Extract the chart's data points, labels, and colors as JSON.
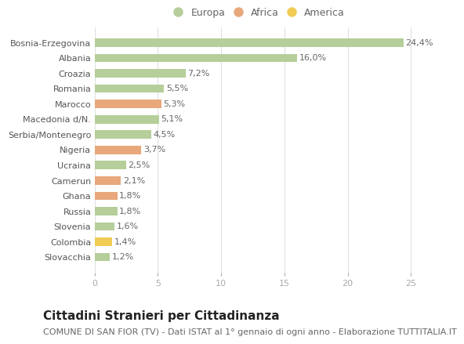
{
  "categories": [
    "Bosnia-Erzegovina",
    "Albania",
    "Croazia",
    "Romania",
    "Marocco",
    "Macedonia d/N.",
    "Serbia/Montenegro",
    "Nigeria",
    "Ucraina",
    "Camerun",
    "Ghana",
    "Russia",
    "Slovenia",
    "Colombia",
    "Slovacchia"
  ],
  "values": [
    24.4,
    16.0,
    7.2,
    5.5,
    5.3,
    5.1,
    4.5,
    3.7,
    2.5,
    2.1,
    1.8,
    1.8,
    1.6,
    1.4,
    1.2
  ],
  "labels": [
    "24,4%",
    "16,0%",
    "7,2%",
    "5,5%",
    "5,3%",
    "5,1%",
    "4,5%",
    "3,7%",
    "2,5%",
    "2,1%",
    "1,8%",
    "1,8%",
    "1,6%",
    "1,4%",
    "1,2%"
  ],
  "continents": [
    "Europa",
    "Europa",
    "Europa",
    "Europa",
    "Africa",
    "Europa",
    "Europa",
    "Africa",
    "Europa",
    "Africa",
    "Africa",
    "Europa",
    "Europa",
    "America",
    "Europa"
  ],
  "colors": {
    "Europa": "#b5ce9a",
    "Africa": "#e8a87c",
    "America": "#f0cc55"
  },
  "title": "Cittadini Stranieri per Cittadinanza",
  "subtitle": "COMUNE DI SAN FIOR (TV) - Dati ISTAT al 1° gennaio di ogni anno - Elaborazione TUTTITALIA.IT",
  "xlim": [
    0,
    26
  ],
  "xticks": [
    0,
    5,
    10,
    15,
    20,
    25
  ],
  "background_color": "#ffffff",
  "plot_background": "#ffffff",
  "grid_color": "#e0e0e0",
  "bar_height": 0.55,
  "title_fontsize": 11,
  "subtitle_fontsize": 8,
  "label_fontsize": 8,
  "tick_fontsize": 8,
  "legend_fontsize": 9
}
